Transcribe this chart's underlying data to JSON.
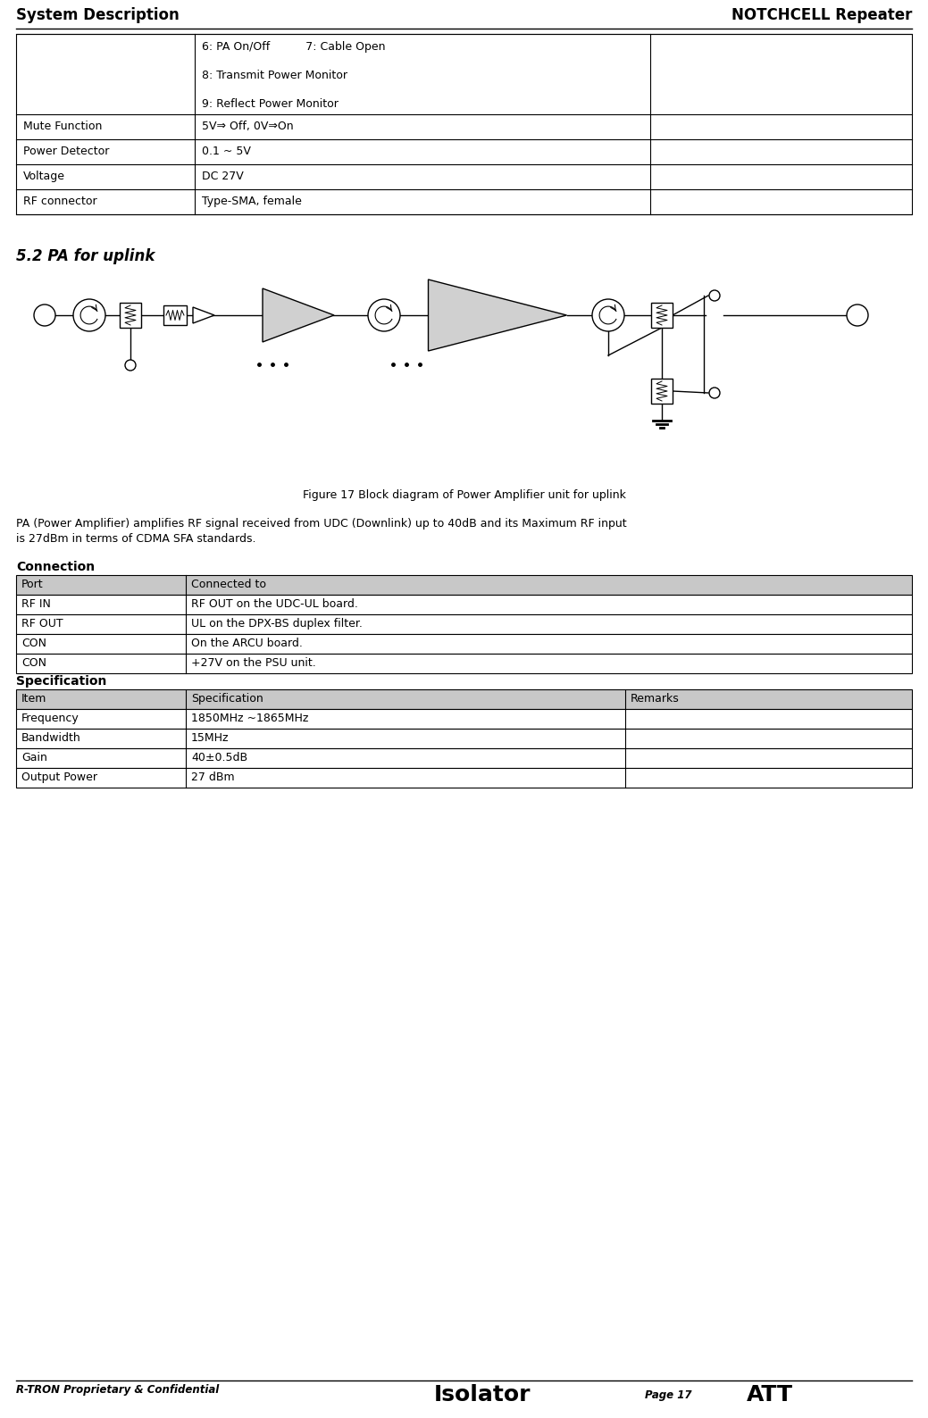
{
  "header_left": "System Description",
  "header_right": "NOTCHCELL Repeater",
  "section_title": "5.2 PA for uplink",
  "figure_caption": "Figure 17 Block diagram of Power Amplifier unit for uplink",
  "pa_description_1": "PA (Power Amplifier) amplifies RF signal received from UDC (Downlink) up to 40dB and its Maximum RF input",
  "pa_description_2": "is 27dBm in terms of CDMA SFA standards.",
  "connection_title": "Connection",
  "connection_header": [
    "Port",
    "Connected to"
  ],
  "connection_rows": [
    [
      "RF IN",
      "RF OUT on the UDC-UL board."
    ],
    [
      "RF OUT",
      "UL on the DPX-BS duplex filter."
    ],
    [
      "CON",
      "On the ARCU board."
    ],
    [
      "CON",
      "+27V on the PSU unit."
    ]
  ],
  "spec_title": "Specification",
  "spec_header": [
    "Item",
    "Specification",
    "Remarks"
  ],
  "spec_rows": [
    [
      "Frequency",
      "1850MHz ~1865MHz",
      ""
    ],
    [
      "Bandwidth",
      "15MHz",
      ""
    ],
    [
      "Gain",
      "40±0.5dB",
      ""
    ],
    [
      "Output Power",
      "27 dBm",
      ""
    ]
  ],
  "top_table_col1_rows": [
    "6: PA On/Off          7: Cable Open",
    "",
    "8: Transmit Power Monitor",
    "",
    "9: Reflect Power Monitor"
  ],
  "top_table_other_rows": [
    [
      "Mute Function",
      "5V⇒ Off, 0V⇒On"
    ],
    [
      "Power Detector",
      "0.1 ~ 5V"
    ],
    [
      "Voltage",
      "DC 27V"
    ],
    [
      "RF connector",
      "Type-SMA, female"
    ]
  ],
  "footer_left": "R-TRON Proprietary & Confidential",
  "footer_center_left": "Isolator",
  "footer_center_right": "ATT",
  "footer_right": "Page 17",
  "bg_color": "#ffffff"
}
